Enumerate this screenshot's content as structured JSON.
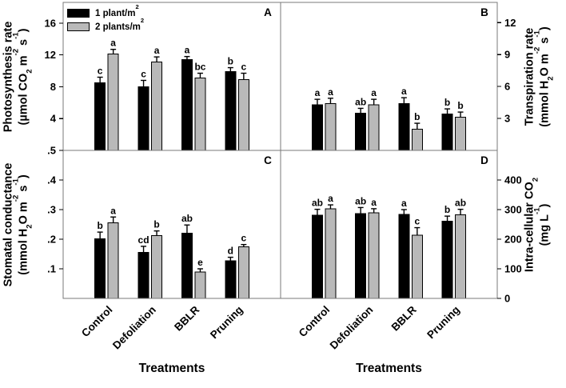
{
  "figure": {
    "background": "#ffffff",
    "border_color": "#7a7a7a",
    "bar_colors": {
      "series1": "#000000",
      "series2": "#b9b9b9"
    },
    "x_axis_title": "Treatments",
    "categories": [
      "Control",
      "Defoliation",
      "BBLR",
      "Pruning"
    ],
    "legend": {
      "items": [
        {
          "label": "1 plant/m^2^",
          "color": "#000000"
        },
        {
          "label": "2 plants/m^2^",
          "color": "#b9b9b9"
        }
      ]
    }
  },
  "chart_data": [
    {
      "panel": "A",
      "type": "bar",
      "position": "top-left",
      "axis_side": "left",
      "grid": false,
      "ylabel": "Photosynthesis rate\n(µmol CO~2~ m^-2^ s^-1^)",
      "ylim": [
        0,
        18.6
      ],
      "yticks": [
        16,
        12,
        8,
        4
      ],
      "ytick_labels": [
        "16",
        "12",
        "8",
        "4"
      ],
      "categories": [
        "Control",
        "Defoliation",
        "BBLR",
        "Pruning"
      ],
      "series": [
        {
          "name": "1 plant/m^2^",
          "color": "#000000",
          "values": [
            8.5,
            8.0,
            11.4,
            9.9
          ],
          "errors": [
            0.7,
            0.8,
            0.4,
            0.5
          ],
          "letters": [
            "c",
            "c",
            "a",
            "b"
          ]
        },
        {
          "name": "2 plants/m^2^",
          "color": "#b9b9b9",
          "values": [
            12.1,
            11.1,
            9.1,
            8.9
          ],
          "errors": [
            0.6,
            0.65,
            0.6,
            0.8
          ],
          "letters": [
            "a",
            "a",
            "bc",
            "c"
          ]
        }
      ]
    },
    {
      "panel": "B",
      "type": "bar",
      "position": "top-right",
      "axis_side": "right",
      "grid": false,
      "ylabel": "Transpiration rate\n(mmol H~2~O m^-2^ s^-1^)",
      "ylim": [
        0,
        13.9
      ],
      "yticks": [
        12,
        9,
        6,
        3
      ],
      "ytick_labels": [
        "12",
        "9",
        "6",
        "3"
      ],
      "categories": [
        "Control",
        "Defoliation",
        "BBLR",
        "Pruning"
      ],
      "series": [
        {
          "name": "1 plant/m^2^",
          "color": "#000000",
          "values": [
            4.3,
            3.5,
            4.4,
            3.4
          ],
          "errors": [
            0.5,
            0.45,
            0.55,
            0.5
          ],
          "letters": [
            "a",
            "ab",
            "a",
            "b"
          ]
        },
        {
          "name": "2 plants/m^2^",
          "color": "#b9b9b9",
          "values": [
            4.4,
            4.3,
            2.0,
            3.1
          ],
          "errors": [
            0.5,
            0.5,
            0.55,
            0.5
          ],
          "letters": [
            "a",
            "a",
            "b",
            "b"
          ]
        }
      ]
    },
    {
      "panel": "C",
      "type": "bar",
      "position": "bottom-left",
      "axis_side": "left",
      "grid": false,
      "ylabel": "Stomatal conductance\n(mmol H~2~O m^-2^ s^-1^)",
      "ylim": [
        0,
        0.5
      ],
      "yticks": [
        0.5,
        0.4,
        0.3,
        0.2,
        0.1
      ],
      "ytick_labels": [
        ".5",
        ".4",
        ".3",
        ".2",
        ".1"
      ],
      "categories": [
        "Control",
        "Defoliation",
        "BBLR",
        "Pruning"
      ],
      "series": [
        {
          "name": "1 plant/m^2^",
          "color": "#000000",
          "values": [
            0.202,
            0.156,
            0.22,
            0.127
          ],
          "errors": [
            0.022,
            0.02,
            0.028,
            0.012
          ],
          "letters": [
            "b",
            "cd",
            "ab",
            "d"
          ]
        },
        {
          "name": "2 plants/m^2^",
          "color": "#b9b9b9",
          "values": [
            0.255,
            0.212,
            0.089,
            0.174
          ],
          "errors": [
            0.02,
            0.016,
            0.011,
            0.008
          ],
          "letters": [
            "a",
            "b",
            "e",
            "c"
          ]
        }
      ]
    },
    {
      "panel": "D",
      "type": "bar",
      "position": "bottom-right",
      "axis_side": "right",
      "grid": false,
      "ylabel": "Intra-cellular CO~2~\n(mg L^-1^)",
      "ylim": [
        0,
        500
      ],
      "yticks": [
        400,
        300,
        200,
        100,
        0
      ],
      "ytick_labels": [
        "400",
        "300",
        "200",
        "100",
        "0"
      ],
      "categories": [
        "Control",
        "Defoliation",
        "BBLR",
        "Pruning"
      ],
      "series": [
        {
          "name": "1 plant/m^2^",
          "color": "#000000",
          "values": [
            281,
            287,
            284,
            261
          ],
          "errors": [
            20,
            20,
            16,
            17
          ],
          "letters": [
            "ab",
            "ab",
            "a",
            "b"
          ]
        },
        {
          "name": "2 plants/m^2^",
          "color": "#b9b9b9",
          "values": [
            303,
            289,
            214,
            283
          ],
          "errors": [
            13,
            14,
            25,
            18
          ],
          "letters": [
            "a",
            "a",
            "c",
            "ab"
          ]
        }
      ]
    }
  ]
}
